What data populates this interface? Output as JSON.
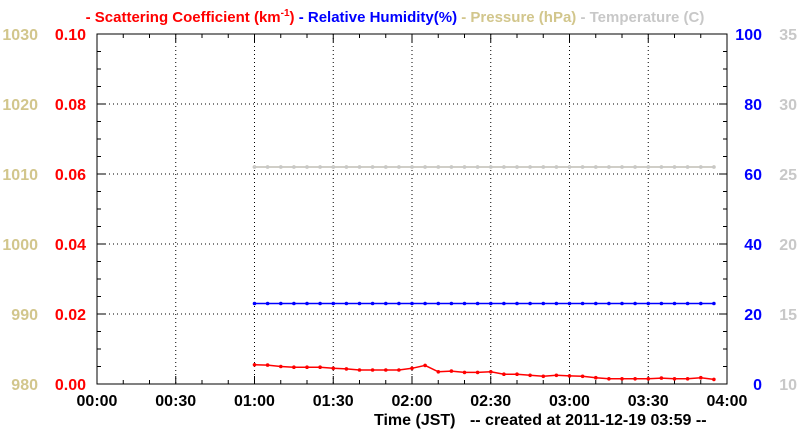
{
  "chart_data": {
    "type": "line",
    "legend": [
      {
        "key": "scattering",
        "prefix": "- ",
        "text": "Scattering Coefficient (km",
        "sup": "-1",
        "suffix": ")",
        "color": "#ff0000"
      },
      {
        "key": "humidity",
        "prefix": " - ",
        "text": "Relative Humidity(%)",
        "color": "#0000ff"
      },
      {
        "key": "pressure",
        "prefix": " - ",
        "text": "Pressure (hPa)",
        "color": "#d2c68c"
      },
      {
        "key": "temperature",
        "prefix": " - ",
        "text": "Temperature (C)",
        "color": "#c8c8c8"
      }
    ],
    "x_axis": {
      "label": "Time (JST)",
      "note": "-- created at 2011-12-19 03:59 --",
      "ticks": [
        "00:00",
        "00:30",
        "01:00",
        "01:30",
        "02:00",
        "02:30",
        "03:00",
        "03:30",
        "04:00"
      ],
      "range_hours": [
        0,
        4
      ]
    },
    "axes": {
      "pressure": {
        "ticks": [
          "980",
          "990",
          "1000",
          "1010",
          "1020",
          "1030"
        ],
        "range": [
          980,
          1030
        ],
        "color": "#d2c68c"
      },
      "scattering": {
        "ticks": [
          "0.00",
          "0.02",
          "0.04",
          "0.06",
          "0.08",
          "0.10"
        ],
        "range": [
          0,
          0.1
        ],
        "color": "#ff0000"
      },
      "humidity": {
        "ticks": [
          "0",
          "20",
          "40",
          "60",
          "80",
          "100"
        ],
        "range": [
          0,
          100
        ],
        "color": "#0000ff"
      },
      "temperature": {
        "ticks": [
          "10",
          "15",
          "20",
          "25",
          "30",
          "35"
        ],
        "range": [
          10,
          35
        ],
        "color": "#c8c8c8"
      }
    },
    "grid": true,
    "series": [
      {
        "name": "Scattering Coefficient",
        "axis": "scattering",
        "color": "#ff0000",
        "x_start": "01:00",
        "x_end": "03:55",
        "step_minutes": 5,
        "values": [
          0.0055,
          0.0054,
          0.005,
          0.0048,
          0.0048,
          0.0048,
          0.0045,
          0.0043,
          0.004,
          0.004,
          0.004,
          0.004,
          0.0045,
          0.0053,
          0.0035,
          0.0037,
          0.0033,
          0.0033,
          0.0035,
          0.0028,
          0.0028,
          0.0025,
          0.0022,
          0.0025,
          0.0023,
          0.0022,
          0.0018,
          0.0015,
          0.0015,
          0.0015,
          0.0015,
          0.0017,
          0.0015,
          0.0015,
          0.0018,
          0.0013
        ]
      },
      {
        "name": "Relative Humidity",
        "axis": "humidity",
        "color": "#0000ff",
        "x_start": "01:00",
        "x_end": "03:55",
        "step_minutes": 5,
        "values": [
          23,
          23,
          23,
          23,
          23,
          23,
          23,
          23,
          23,
          23,
          23,
          23,
          23,
          23,
          23,
          23,
          23,
          23,
          23,
          23,
          23,
          23,
          23,
          23,
          23,
          23,
          23,
          23,
          23,
          23,
          23,
          23,
          23,
          23,
          23,
          23
        ]
      },
      {
        "name": "Pressure",
        "axis": "pressure",
        "color": "#d2c68c",
        "x_start": "01:00",
        "x_end": "03:55",
        "step_minutes": 5,
        "values": [
          1011,
          1011,
          1011,
          1011,
          1011,
          1011,
          1011,
          1011,
          1011,
          1011,
          1011,
          1011,
          1011,
          1011,
          1011,
          1011,
          1011,
          1011,
          1011,
          1011,
          1011,
          1011,
          1011,
          1011,
          1011,
          1011,
          1011,
          1011,
          1011,
          1011,
          1011,
          1011,
          1011,
          1011,
          1011,
          1011
        ]
      },
      {
        "name": "Temperature",
        "axis": "temperature",
        "color": "#c8c8c8",
        "x_start": "01:00",
        "x_end": "03:55",
        "step_minutes": 5,
        "values": [
          25.5,
          25.5,
          25.5,
          25.5,
          25.5,
          25.5,
          25.5,
          25.5,
          25.5,
          25.5,
          25.5,
          25.5,
          25.5,
          25.5,
          25.5,
          25.5,
          25.5,
          25.5,
          25.5,
          25.5,
          25.5,
          25.5,
          25.5,
          25.5,
          25.5,
          25.5,
          25.5,
          25.5,
          25.5,
          25.5,
          25.5,
          25.5,
          25.5,
          25.5,
          25.5,
          25.5
        ]
      }
    ]
  }
}
